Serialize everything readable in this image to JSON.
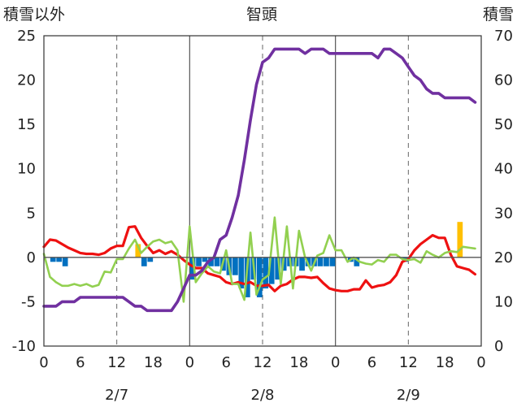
{
  "chart_data": {
    "type": "line",
    "title": "智頭",
    "ylabel_left": "積雪以外",
    "ylabel_right": "積雪",
    "x_tick_labels": [
      "0",
      "6",
      "12",
      "18",
      "0",
      "6",
      "12",
      "18",
      "0",
      "6",
      "12",
      "18",
      "0"
    ],
    "date_labels": [
      {
        "x": 12,
        "label": "2/7"
      },
      {
        "x": 36,
        "label": "2/8"
      },
      {
        "x": 60,
        "label": "2/9"
      }
    ],
    "xlim": [
      0,
      72
    ],
    "ylim_left": [
      -10,
      25
    ],
    "ylim_right": [
      0,
      70
    ],
    "y_ticks_left": [
      -10,
      -5,
      0,
      5,
      10,
      15,
      20,
      25
    ],
    "y_ticks_right": [
      0,
      10,
      20,
      30,
      40,
      50,
      60,
      70
    ],
    "grid": {
      "x_dashed_at": [
        12,
        36,
        60
      ],
      "x_solid_at": [
        24,
        48
      ],
      "y_solid_at": [
        0
      ]
    },
    "colors": {
      "red": "#ee1111",
      "green": "#92d050",
      "purple": "#7030a0",
      "blue": "#0070c0",
      "orange": "#ffc000"
    },
    "bars": {
      "axis": "left",
      "hours": [
        0,
        1,
        2,
        3,
        4,
        5,
        6,
        7,
        8,
        9,
        10,
        11,
        12,
        13,
        14,
        15,
        16,
        17,
        18,
        19,
        20,
        21,
        22,
        23,
        24,
        25,
        26,
        27,
        28,
        29,
        30,
        31,
        32,
        33,
        34,
        35,
        36,
        37,
        38,
        39,
        40,
        41,
        42,
        43,
        44,
        45,
        46,
        47,
        48,
        49,
        50,
        51,
        52,
        53,
        54,
        55,
        56,
        57,
        58,
        59,
        60,
        61,
        62,
        63,
        64,
        65,
        66,
        67,
        68,
        69,
        70,
        71
      ],
      "values": [
        0,
        -0.5,
        -0.5,
        -1,
        0,
        0,
        0,
        0,
        0,
        0,
        0,
        0,
        0,
        0,
        0,
        1.5,
        -1,
        -0.5,
        0,
        0,
        0,
        0,
        0,
        0,
        -2.5,
        -1,
        -0.5,
        -1,
        -1,
        -1.5,
        -2,
        -2,
        -3.5,
        -4.5,
        -2.5,
        -4.5,
        -3.5,
        -3,
        -2.5,
        -1.5,
        -1,
        -1,
        -1.5,
        -1,
        -1,
        -1,
        -1,
        -1,
        0,
        0,
        -0.5,
        -1,
        0,
        0,
        0,
        0,
        0,
        0,
        0,
        -0.5,
        0,
        0,
        0,
        0,
        0,
        0,
        0,
        0,
        4,
        0,
        0,
        0
      ]
    },
    "series": [
      {
        "key": "red",
        "axis": "left",
        "x": [
          0,
          1,
          2,
          3,
          4,
          5,
          6,
          7,
          8,
          9,
          10,
          11,
          12,
          13,
          14,
          15,
          16,
          17,
          18,
          19,
          20,
          21,
          22,
          23,
          24,
          25,
          26,
          27,
          28,
          29,
          30,
          31,
          32,
          33,
          34,
          35,
          36,
          37,
          38,
          39,
          40,
          41,
          42,
          43,
          44,
          45,
          46,
          47,
          48,
          49,
          50,
          51,
          52,
          53,
          54,
          55,
          56,
          57,
          58,
          59,
          60,
          61,
          62,
          63,
          64,
          65,
          66,
          67,
          68,
          69,
          70,
          71
        ],
        "y": [
          1.2,
          2,
          1.9,
          1.5,
          1.1,
          0.8,
          0.5,
          0.4,
          0.4,
          0.3,
          0.5,
          1,
          1.3,
          1.3,
          3.4,
          3.5,
          2.2,
          1.3,
          0.5,
          0.8,
          0.4,
          0.7,
          0.3,
          -0.3,
          -0.8,
          -1.2,
          -1.2,
          -1.8,
          -2,
          -2.2,
          -2.8,
          -3,
          -2.8,
          -3,
          -2.8,
          -3.2,
          -3.2,
          -3.1,
          -3.8,
          -3.2,
          -3,
          -2.5,
          -2.2,
          -2.2,
          -2.3,
          -2.2,
          -2.9,
          -3.5,
          -3.7,
          -3.8,
          -3.8,
          -3.6,
          -3.6,
          -2.6,
          -3.4,
          -3.2,
          -3.1,
          -2.8,
          -2,
          -0.5,
          -0.2,
          0.8,
          1.5,
          2,
          2.5,
          2.2,
          2.2,
          0.3,
          -1,
          -1.2,
          -1.4,
          -1.9
        ]
      },
      {
        "key": "green",
        "axis": "left",
        "x": [
          0,
          1,
          2,
          3,
          4,
          5,
          6,
          7,
          8,
          9,
          10,
          11,
          12,
          13,
          14,
          15,
          16,
          17,
          18,
          19,
          20,
          21,
          22,
          23,
          24,
          25,
          26,
          27,
          28,
          29,
          30,
          31,
          32,
          33,
          34,
          35,
          36,
          37,
          38,
          39,
          40,
          41,
          42,
          43,
          44,
          45,
          46,
          47,
          48,
          49,
          50,
          51,
          52,
          53,
          54,
          55,
          56,
          57,
          58,
          59,
          60,
          61,
          62,
          63,
          64,
          65,
          66,
          67,
          68,
          69,
          70,
          71
        ],
        "y": [
          0.4,
          -2.2,
          -2.8,
          -3.2,
          -3.2,
          -3,
          -3.2,
          -3,
          -3.3,
          -3.1,
          -1.6,
          -1.7,
          -0.2,
          -0.2,
          1,
          2,
          0.5,
          1.2,
          1.8,
          2,
          1.6,
          1.8,
          0.8,
          -5,
          3.5,
          -2.8,
          -1.8,
          -1,
          -1.6,
          -1.8,
          0.8,
          -3,
          -3,
          -4.8,
          2.8,
          -4.2,
          -2.5,
          -2,
          4.5,
          -3,
          3.5,
          -3.5,
          3,
          0,
          -1.5,
          0.2,
          0.5,
          2.5,
          0.8,
          0.8,
          -0.5,
          0,
          -0.5,
          -0.7,
          -0.8,
          -0.3,
          -0.5,
          0.3,
          0.3,
          -0.2,
          -0.3,
          -0.2,
          -0.6,
          0.7,
          0.3,
          0,
          0.5,
          0.7,
          0.6,
          1.2,
          1.1,
          1.0
        ]
      },
      {
        "key": "purple",
        "axis": "right",
        "x": [
          0,
          1,
          2,
          3,
          4,
          5,
          6,
          7,
          8,
          9,
          10,
          11,
          12,
          13,
          14,
          15,
          16,
          17,
          18,
          19,
          20,
          21,
          22,
          23,
          24,
          25,
          26,
          27,
          28,
          29,
          30,
          31,
          32,
          33,
          34,
          35,
          36,
          37,
          38,
          39,
          40,
          41,
          42,
          43,
          44,
          45,
          46,
          47,
          48,
          49,
          50,
          51,
          52,
          53,
          54,
          55,
          56,
          57,
          58,
          59,
          60,
          61,
          62,
          63,
          64,
          65,
          66,
          67,
          68,
          69,
          70,
          71
        ],
        "y": [
          9,
          9,
          9,
          10,
          10,
          10,
          11,
          11,
          11,
          11,
          11,
          11,
          11,
          11,
          10,
          9,
          9,
          8,
          8,
          8,
          8,
          8,
          10,
          13,
          16,
          16,
          17,
          19,
          20,
          24,
          25,
          29,
          34,
          42,
          51,
          59,
          64,
          65,
          67,
          67,
          67,
          67,
          67,
          66,
          67,
          67,
          67,
          66,
          66,
          66,
          66,
          66,
          66,
          66,
          66,
          65,
          67,
          67,
          66,
          65,
          63,
          61,
          60,
          58,
          57,
          57,
          56,
          56,
          56,
          56,
          56,
          55
        ]
      }
    ]
  }
}
